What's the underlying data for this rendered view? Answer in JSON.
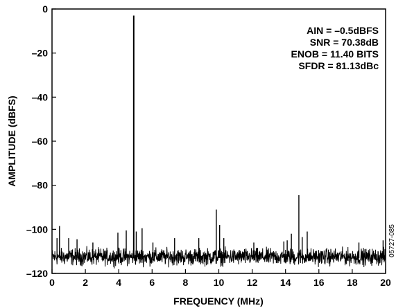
{
  "chart_data": {
    "type": "line",
    "xlabel": "FREQUENCY (MHz)",
    "ylabel": "AMPLITUDE (dBFS)",
    "xlim": [
      0,
      20
    ],
    "ylim": [
      -120,
      0
    ],
    "xticks": [
      0,
      2,
      4,
      6,
      8,
      10,
      12,
      14,
      16,
      18,
      20
    ],
    "yticks": [
      0,
      -20,
      -40,
      -60,
      -80,
      -100,
      -120
    ],
    "xtick_labels": [
      "0",
      "2",
      "4",
      "6",
      "8",
      "10",
      "12",
      "14",
      "16",
      "18",
      "20"
    ],
    "ytick_labels": [
      "0",
      "–20",
      "–40",
      "–60",
      "–80",
      "–100",
      "–120"
    ],
    "grid": false,
    "annotations": [
      "AIN = –0.5dBFS",
      "SNR = 70.38dB",
      "ENOB = 11.40 BITS",
      "SFDR = 81.13dBc"
    ],
    "figure_id": "05727-085",
    "noise_floor_range": [
      -118,
      -107
    ],
    "spurs": [
      {
        "x": 4.9,
        "y": -3
      },
      {
        "x": 9.85,
        "y": -91
      },
      {
        "x": 14.8,
        "y": -84.5
      },
      {
        "x": 10.05,
        "y": -98
      },
      {
        "x": 0.45,
        "y": -98.5
      },
      {
        "x": 5.4,
        "y": -99.5
      },
      {
        "x": 3.95,
        "y": -101.5
      },
      {
        "x": 4.45,
        "y": -100.5
      },
      {
        "x": 5.05,
        "y": -101
      },
      {
        "x": 14.35,
        "y": -102
      },
      {
        "x": 15.3,
        "y": -101
      },
      {
        "x": 0.3,
        "y": -104
      },
      {
        "x": 1.0,
        "y": -104
      },
      {
        "x": 1.5,
        "y": -104.5
      },
      {
        "x": 10.3,
        "y": -104
      },
      {
        "x": 15.0,
        "y": -103.5
      },
      {
        "x": 7.35,
        "y": -104
      },
      {
        "x": 8.8,
        "y": -104
      },
      {
        "x": 19.85,
        "y": -105
      },
      {
        "x": 14.1,
        "y": -105
      },
      {
        "x": 13.9,
        "y": -105.5
      },
      {
        "x": 12.1,
        "y": -106
      },
      {
        "x": 6.05,
        "y": -106
      },
      {
        "x": 2.45,
        "y": -106
      },
      {
        "x": 18.4,
        "y": -106
      }
    ]
  }
}
